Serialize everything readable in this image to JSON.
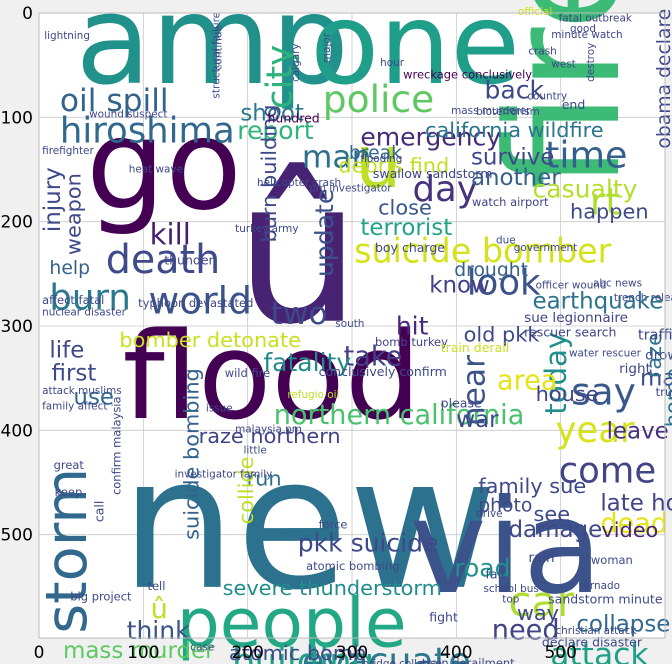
{
  "plot": {
    "type": "wordcloud",
    "x_ticks": [
      "0",
      "100",
      "200",
      "300",
      "400",
      "500"
    ],
    "y_ticks": [
      "0",
      "100",
      "200",
      "300",
      "400",
      "500"
    ],
    "xlim": [
      0,
      600
    ],
    "ylim": [
      0,
      600
    ],
    "grid": true,
    "axes_background": "#ffffff",
    "figure_background": "#f0f0f0",
    "colormap": "viridis"
  },
  "words": [
    {
      "text": "amp",
      "color": "#21918c"
    },
    {
      "text": "one",
      "color": "#1f9e89"
    },
    {
      "text": "fire",
      "color": "#3bbb75"
    },
    {
      "text": "go",
      "color": "#440154"
    },
    {
      "text": "û",
      "color": "#482374"
    },
    {
      "text": "flood",
      "color": "#440154"
    },
    {
      "text": "new",
      "color": "#2c728e"
    },
    {
      "text": "via",
      "color": "#3b528b"
    },
    {
      "text": "people",
      "color": "#22a884"
    },
    {
      "text": "storm",
      "color": "#30688e"
    },
    {
      "text": "u",
      "color": "#bddf26"
    },
    {
      "text": "suicide bomber",
      "color": "#d5e21a"
    },
    {
      "text": "police",
      "color": "#5ec962"
    },
    {
      "text": "hiroshima",
      "color": "#31688e"
    },
    {
      "text": "death",
      "color": "#3e4a89"
    },
    {
      "text": "burn",
      "color": "#2a788e"
    },
    {
      "text": "world",
      "color": "#3b528b"
    },
    {
      "text": "kill",
      "color": "#481f70"
    },
    {
      "text": "oil spill",
      "color": "#33638d"
    },
    {
      "text": "city",
      "color": "#2db27d"
    },
    {
      "text": "emergency",
      "color": "#472c7a"
    },
    {
      "text": "time",
      "color": "#355f8d"
    },
    {
      "text": "day",
      "color": "#46337e"
    },
    {
      "text": "man",
      "color": "#2d708e"
    },
    {
      "text": "california wildfire",
      "color": "#2b748e"
    },
    {
      "text": "report",
      "color": "#2fb47c"
    },
    {
      "text": "look",
      "color": "#3b528b"
    },
    {
      "text": "year",
      "color": "#d8e219"
    },
    {
      "text": "say",
      "color": "#38598c"
    },
    {
      "text": "come",
      "color": "#414487"
    },
    {
      "text": "car",
      "color": "#addc30"
    },
    {
      "text": "evacuate",
      "color": "#2a788e"
    },
    {
      "text": "northern california",
      "color": "#4ac16d"
    },
    {
      "text": "building",
      "color": "#1fa188"
    },
    {
      "text": "attack",
      "color": "#1fa188"
    },
    {
      "text": "rt",
      "color": "#addc30"
    },
    {
      "text": "today",
      "color": "#228d8d"
    },
    {
      "text": "near",
      "color": "#3b528b"
    },
    {
      "text": "two",
      "color": "#3e4989"
    },
    {
      "text": "take",
      "color": "#424086"
    },
    {
      "text": "fatality",
      "color": "#228c8d"
    },
    {
      "text": "area",
      "color": "#e5e419"
    },
    {
      "text": "bomber detonate",
      "color": "#c8e020"
    },
    {
      "text": "pkk suicide",
      "color": "#3f4889"
    },
    {
      "text": "severe thunderstorm",
      "color": "#228c8d"
    },
    {
      "text": "atomic bomb",
      "color": "#3e4a89"
    },
    {
      "text": "mass murder",
      "color": "#5ec962"
    },
    {
      "text": "think",
      "color": "#3b528b"
    },
    {
      "text": "need",
      "color": "#414487"
    },
    {
      "text": "collapse",
      "color": "#31688e"
    },
    {
      "text": "dead",
      "color": "#e5e419"
    },
    {
      "text": "leave",
      "color": "#46327e"
    },
    {
      "text": "back",
      "color": "#3e4989"
    },
    {
      "text": "shoot",
      "color": "#2a788e"
    },
    {
      "text": "debris find",
      "color": "#c2df23"
    },
    {
      "text": "survive",
      "color": "#3e4989"
    },
    {
      "text": "another",
      "color": "#355f8d"
    },
    {
      "text": "casualty",
      "color": "#b5de2b"
    },
    {
      "text": "happen",
      "color": "#3e4989"
    },
    {
      "text": "terrorist",
      "color": "#20a386"
    },
    {
      "text": "close",
      "color": "#39568c"
    },
    {
      "text": "know",
      "color": "#424086"
    },
    {
      "text": "earthquake",
      "color": "#2c728e"
    },
    {
      "text": "drought",
      "color": "#34618d"
    },
    {
      "text": "hit",
      "color": "#482878"
    },
    {
      "text": "update",
      "color": "#3b528b"
    },
    {
      "text": "life",
      "color": "#3e4989"
    },
    {
      "text": "first",
      "color": "#3e4989"
    },
    {
      "text": "use",
      "color": "#31688e"
    },
    {
      "text": "help",
      "color": "#33638d"
    },
    {
      "text": "injury",
      "color": "#3e4989"
    },
    {
      "text": "weapon",
      "color": "#3e4989"
    },
    {
      "text": "make",
      "color": "#3e4989"
    },
    {
      "text": "raze",
      "color": "#2c728e"
    },
    {
      "text": "home",
      "color": "#2c728e"
    },
    {
      "text": "house",
      "color": "#414487"
    },
    {
      "text": "war",
      "color": "#3e4989"
    },
    {
      "text": "raze northern",
      "color": "#414487"
    },
    {
      "text": "run",
      "color": "#2c728e"
    },
    {
      "text": "collide",
      "color": "#bddf26"
    },
    {
      "text": "suicide bombing",
      "color": "#33638d"
    },
    {
      "text": "video",
      "color": "#482374"
    },
    {
      "text": "late home",
      "color": "#414487"
    },
    {
      "text": "damage",
      "color": "#3e4989"
    },
    {
      "text": "family sue",
      "color": "#3e4989"
    },
    {
      "text": "see",
      "color": "#3e4989"
    },
    {
      "text": "road",
      "color": "#21918c"
    },
    {
      "text": "way",
      "color": "#3e4989"
    },
    {
      "text": "old pkk",
      "color": "#3e4989"
    },
    {
      "text": "burn building",
      "color": "#3e4989"
    },
    {
      "text": "obama declare",
      "color": "#3e4989"
    },
    {
      "text": "detonate bomb",
      "color": "#3e4989"
    },
    {
      "text": "û",
      "color": "#bddf26"
    },
    {
      "text": "photo",
      "color": "#3e4989"
    },
    {
      "text": "break",
      "color": "#31688e"
    },
    {
      "text": "hundred",
      "color": "#440154"
    },
    {
      "text": "wreckage conclusively",
      "color": "#440154"
    },
    {
      "text": "official",
      "color": "#d0e11c"
    },
    {
      "text": "fatal outbreak",
      "color": "#414487"
    },
    {
      "text": "minute watch",
      "color": "#414487"
    },
    {
      "text": "crash",
      "color": "#414487"
    },
    {
      "text": "swallow sandstorm",
      "color": "#414487"
    },
    {
      "text": "watch airport",
      "color": "#414487"
    },
    {
      "text": "sue legionnaire",
      "color": "#414487"
    },
    {
      "text": "rescuer search",
      "color": "#414487"
    },
    {
      "text": "bomb turkey",
      "color": "#414487"
    },
    {
      "text": "train derail",
      "color": "#c8e020"
    },
    {
      "text": "conclusively confirm",
      "color": "#3e4989"
    },
    {
      "text": "refugio oil",
      "color": "#bddf26"
    },
    {
      "text": "wild fire",
      "color": "#3e4989"
    },
    {
      "text": "bridge collapse",
      "color": "#3e4989"
    },
    {
      "text": "train derailment",
      "color": "#3e4989"
    },
    {
      "text": "declare disaster",
      "color": "#3e4989"
    },
    {
      "text": "sandstorm minute",
      "color": "#3e4989"
    },
    {
      "text": "boy charge",
      "color": "#3e4989"
    },
    {
      "text": "thunder",
      "color": "#3e4989"
    },
    {
      "text": "affect fatal",
      "color": "#3e4989"
    },
    {
      "text": "nuclear disaster",
      "color": "#3e4989"
    },
    {
      "text": "typhoon devastated",
      "color": "#3e4989"
    },
    {
      "text": "lightning",
      "color": "#3e4989"
    },
    {
      "text": "wound suspect",
      "color": "#3e4989"
    },
    {
      "text": "structural failure",
      "color": "#3e4989"
    },
    {
      "text": "helicopter crash",
      "color": "#3e4989"
    },
    {
      "text": "pm investigator",
      "color": "#3e4989"
    },
    {
      "text": "firefighter",
      "color": "#3e4989"
    },
    {
      "text": "heat wave",
      "color": "#3e4989"
    },
    {
      "text": "turkey army",
      "color": "#3e4989"
    },
    {
      "text": "flooding",
      "color": "#3e4989"
    },
    {
      "text": "government",
      "color": "#3e4989"
    },
    {
      "text": "malaysia pm",
      "color": "#3e4989"
    },
    {
      "text": "tornado",
      "color": "#3e4989"
    },
    {
      "text": "christian attack",
      "color": "#3e4989"
    },
    {
      "text": "abc news",
      "color": "#3e4989"
    },
    {
      "text": "trench release",
      "color": "#3e4989"
    },
    {
      "text": "officer wound",
      "color": "#3e4989"
    },
    {
      "text": "water rescuer",
      "color": "#3e4989"
    },
    {
      "text": "drown",
      "color": "#3e4989"
    },
    {
      "text": "traffic",
      "color": "#3e4989"
    },
    {
      "text": "right",
      "color": "#3e4989"
    },
    {
      "text": "please",
      "color": "#3e4989"
    },
    {
      "text": "attack muslims",
      "color": "#3e4989"
    },
    {
      "text": "family affect",
      "color": "#3e4989"
    },
    {
      "text": "great",
      "color": "#3e4989"
    },
    {
      "text": "keep",
      "color": "#3e4989"
    },
    {
      "text": "call",
      "color": "#3e4989"
    },
    {
      "text": "confirm malaysia",
      "color": "#3e4989"
    },
    {
      "text": "investigator family",
      "color": "#3e4989"
    },
    {
      "text": "force",
      "color": "#3e4989"
    },
    {
      "text": "atomic bombing",
      "color": "#3e4989"
    },
    {
      "text": "fight",
      "color": "#3e4989"
    },
    {
      "text": "fall",
      "color": "#3e4989"
    },
    {
      "text": "rain",
      "color": "#3e4989"
    },
    {
      "text": "woman",
      "color": "#3e4989"
    },
    {
      "text": "top",
      "color": "#3e4989"
    },
    {
      "text": "school bus",
      "color": "#3e4989"
    },
    {
      "text": "tell",
      "color": "#3e4989"
    },
    {
      "text": "big project",
      "color": "#3e4989"
    },
    {
      "text": "case",
      "color": "#3e4989"
    },
    {
      "text": "issue",
      "color": "#3e4989"
    },
    {
      "text": "little",
      "color": "#3e4989"
    },
    {
      "text": "drive",
      "color": "#3e4989"
    },
    {
      "text": "truck",
      "color": "#3e4989"
    },
    {
      "text": "south",
      "color": "#3e4989"
    },
    {
      "text": "mass murderer",
      "color": "#3e4989"
    },
    {
      "text": "end",
      "color": "#3e4989"
    },
    {
      "text": "due",
      "color": "#3e4989"
    },
    {
      "text": "bioterrorism",
      "color": "#3e4989"
    },
    {
      "text": "country",
      "color": "#3e4989"
    },
    {
      "text": "good",
      "color": "#3e4989"
    },
    {
      "text": "west",
      "color": "#3e4989"
    },
    {
      "text": "destroy",
      "color": "#3e4989"
    },
    {
      "text": "major",
      "color": "#3e4989"
    },
    {
      "text": "hour",
      "color": "#3e4989"
    },
    {
      "text": "continue",
      "color": "#3e4989"
    },
    {
      "text": "calgary",
      "color": "#3e4989"
    }
  ]
}
